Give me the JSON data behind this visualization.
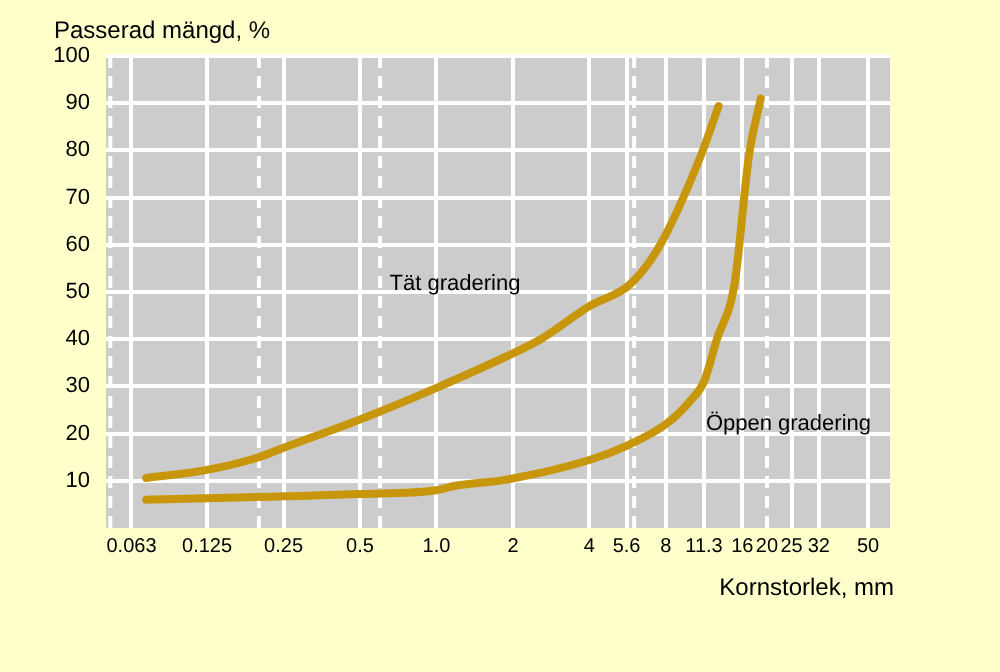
{
  "chart_data": {
    "type": "line",
    "ylabel": "Passerad mängd, %",
    "xlabel": "Kornstorlek, mm",
    "log": "x",
    "xlim": [
      0.05,
      61
    ],
    "xticks": [
      0.063,
      0.125,
      0.25,
      0.5,
      {
        "value": 1,
        "label": "1.0"
      },
      2,
      4,
      5.6,
      8,
      11.3,
      16,
      20,
      25,
      32,
      50
    ],
    "ylim": [
      0,
      100
    ],
    "yticks": [
      10,
      20,
      30,
      40,
      50,
      60,
      70,
      80,
      90,
      100
    ],
    "grid": true,
    "legend": false,
    "marker": "none",
    "line_style": "solid",
    "series": [
      {
        "name": "Tät gradering",
        "color": "#c8960a",
        "x": [
          0.072,
          0.125,
          0.2,
          0.25,
          0.5,
          1,
          2,
          2.57,
          4,
          5.8,
          7.6,
          11,
          12.9
        ],
        "values": [
          10.6,
          12.3,
          15,
          17,
          23,
          29.7,
          37,
          40,
          47,
          51.7,
          60,
          79,
          89.4
        ]
      },
      {
        "name": "Öppen gradering",
        "color": "#c8960a",
        "x": [
          0.072,
          0.5,
          1,
          1.2,
          1.86,
          4,
          5.6,
          8,
          10,
          11.3,
          12.7,
          14.9,
          17,
          18.9
        ],
        "values": [
          6,
          7.2,
          8,
          9,
          10.2,
          14.4,
          17.4,
          22,
          27,
          31,
          40,
          51.7,
          79,
          91
        ]
      }
    ],
    "ref_lines": [
      {
        "axis": "x",
        "value": 0.052,
        "color": "#ffffff",
        "line_style": "dashed"
      },
      {
        "axis": "x",
        "value": 0.2,
        "color": "#ffffff",
        "line_style": "dashed"
      },
      {
        "axis": "x",
        "value": 0.6,
        "color": "#ffffff",
        "line_style": "dashed"
      },
      {
        "axis": "x",
        "value": 6,
        "color": "#ffffff",
        "line_style": "dashed"
      },
      {
        "axis": "x",
        "value": 20,
        "color": "#ffffff",
        "line_style": "dashed"
      }
    ]
  }
}
